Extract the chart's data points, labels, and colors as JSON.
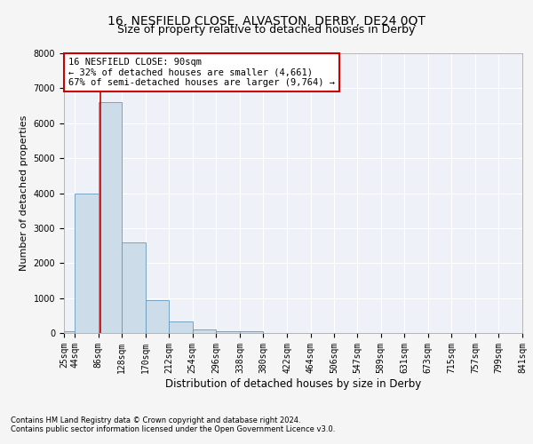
{
  "title": "16, NESFIELD CLOSE, ALVASTON, DERBY, DE24 0QT",
  "subtitle": "Size of property relative to detached houses in Derby",
  "xlabel": "Distribution of detached houses by size in Derby",
  "ylabel": "Number of detached properties",
  "footnote1": "Contains HM Land Registry data © Crown copyright and database right 2024.",
  "footnote2": "Contains public sector information licensed under the Open Government Licence v3.0.",
  "annotation_title": "16 NESFIELD CLOSE: 90sqm",
  "annotation_line1": "← 32% of detached houses are smaller (4,661)",
  "annotation_line2": "67% of semi-detached houses are larger (9,764) →",
  "property_size": 90,
  "bin_edges": [
    25,
    44,
    86,
    128,
    170,
    212,
    254,
    296,
    338,
    380,
    422,
    464,
    506,
    547,
    589,
    631,
    673,
    715,
    757,
    799,
    841
  ],
  "bin_labels": [
    "25sqm",
    "44sqm",
    "86sqm",
    "128sqm",
    "170sqm",
    "212sqm",
    "254sqm",
    "296sqm",
    "338sqm",
    "380sqm",
    "422sqm",
    "464sqm",
    "506sqm",
    "547sqm",
    "589sqm",
    "631sqm",
    "673sqm",
    "715sqm",
    "757sqm",
    "799sqm",
    "841sqm"
  ],
  "bar_heights": [
    60,
    4000,
    6600,
    2600,
    950,
    320,
    100,
    60,
    50,
    0,
    0,
    0,
    0,
    0,
    0,
    0,
    0,
    0,
    0,
    0
  ],
  "bar_color": "#ccdce8",
  "bar_edge_color": "#6699bb",
  "red_line_color": "#cc0000",
  "ylim": [
    0,
    8000
  ],
  "yticks": [
    0,
    1000,
    2000,
    3000,
    4000,
    5000,
    6000,
    7000,
    8000
  ],
  "background_color": "#eef2f8",
  "grid_color": "#ffffff",
  "annotation_box_color": "#ffffff",
  "annotation_box_edge": "#cc0000",
  "title_fontsize": 10,
  "subtitle_fontsize": 9,
  "axis_label_fontsize": 8.5,
  "tick_fontsize": 7,
  "annotation_fontsize": 7.5,
  "ylabel_fontsize": 8
}
